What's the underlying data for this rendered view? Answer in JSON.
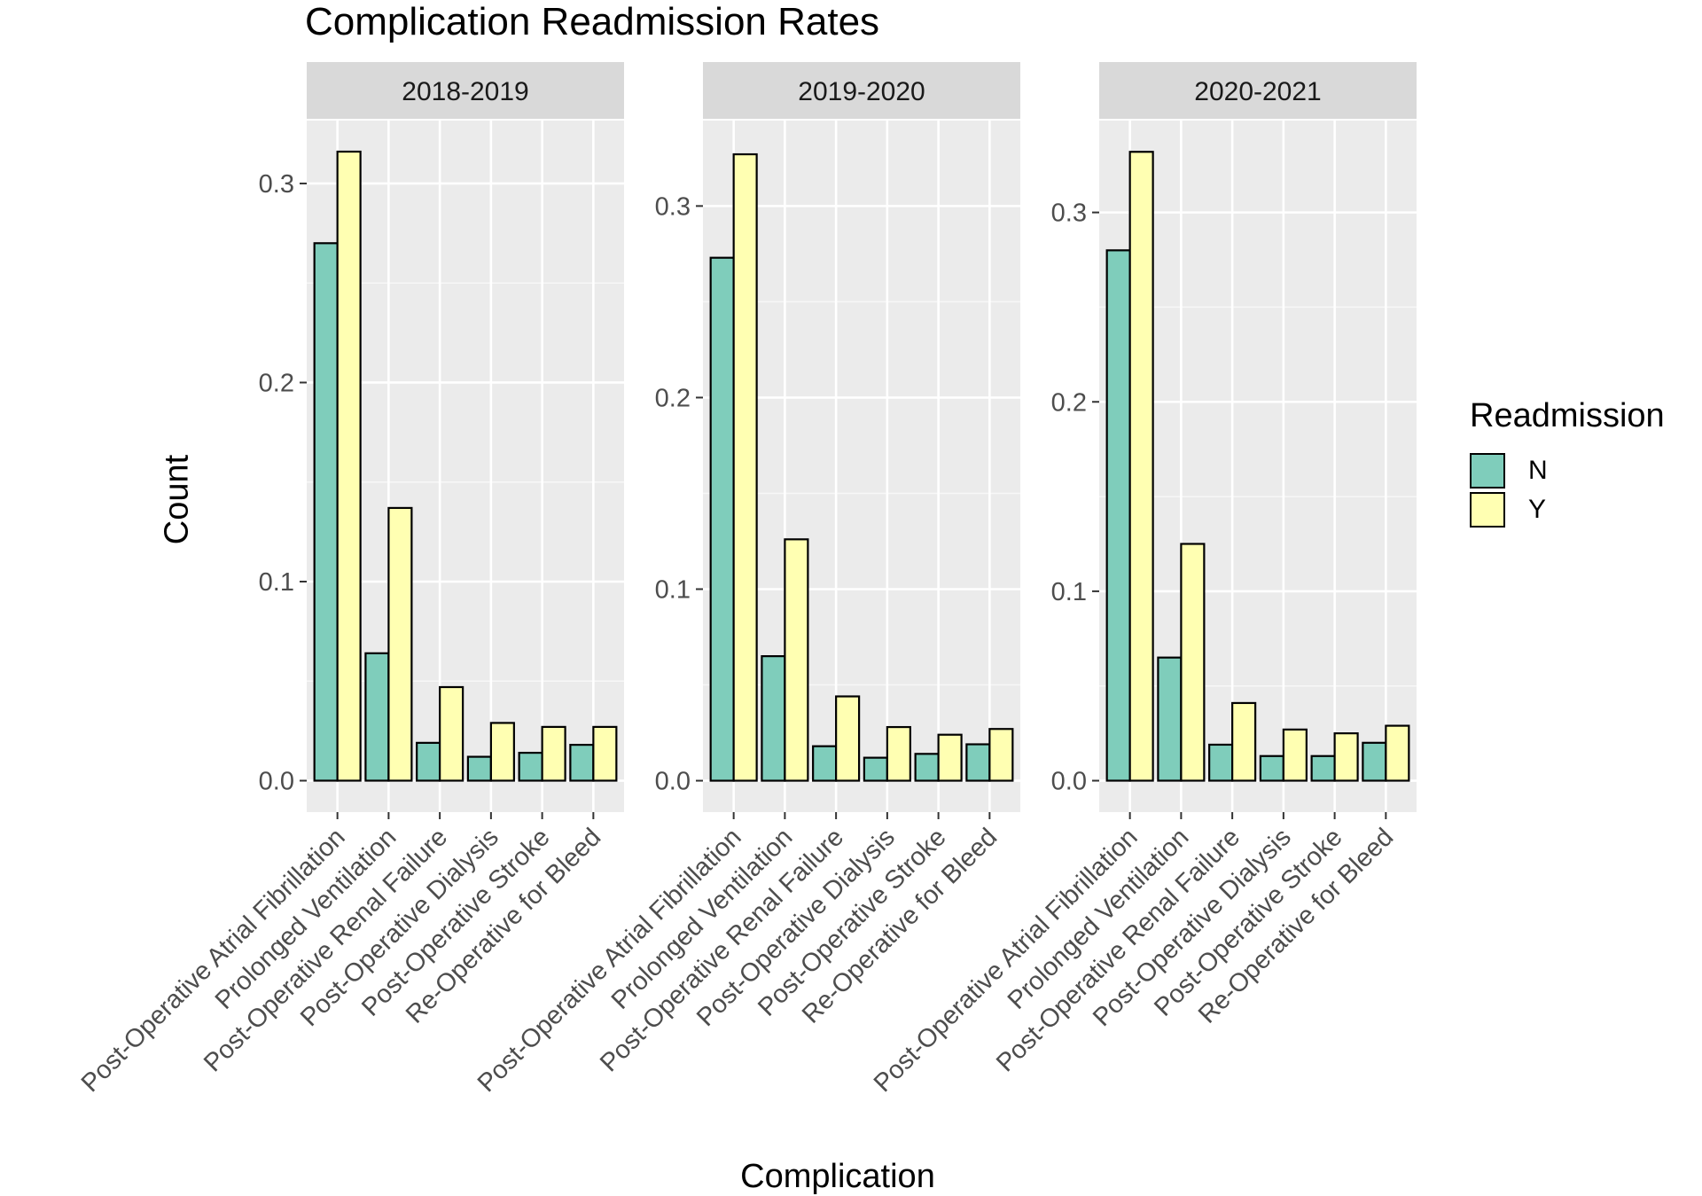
{
  "chart_data": {
    "type": "bar",
    "title": "Complication Readmission Rates",
    "xlabel": "Complication",
    "ylabel": "Count",
    "legend": {
      "title": "Readmission",
      "placement": "right",
      "entries": [
        {
          "name": "N",
          "color": "#7FCDBB"
        },
        {
          "name": "Y",
          "color": "#FFFFB2"
        }
      ]
    },
    "categories": [
      "Post-Operative Atrial Fibrillation",
      "Prolonged Ventilation",
      "Post-Operative Renal Failure",
      "Post-Operative Dialysis",
      "Post-Operative Stroke",
      "Re-Operative for Bleed"
    ],
    "grid": true,
    "panels": [
      {
        "strip": "2018-2019",
        "ylim": [
          -0.0158,
          0.3316
        ],
        "yticks": [
          0.0,
          0.1,
          0.2,
          0.3
        ],
        "ytick_labels": [
          "0.0",
          "0.1",
          "0.2",
          "0.3"
        ],
        "series": [
          {
            "name": "N",
            "values": [
              0.27,
              0.064,
              0.019,
              0.012,
              0.014,
              0.018
            ]
          },
          {
            "name": "Y",
            "values": [
              0.316,
              0.137,
              0.047,
              0.029,
              0.027,
              0.027
            ]
          }
        ]
      },
      {
        "strip": "2019-2020",
        "ylim": [
          -0.0164,
          0.3446
        ],
        "yticks": [
          0.0,
          0.1,
          0.2,
          0.3
        ],
        "ytick_labels": [
          "0.0",
          "0.1",
          "0.2",
          "0.3"
        ],
        "series": [
          {
            "name": "N",
            "values": [
              0.273,
              0.065,
              0.018,
              0.012,
              0.014,
              0.019
            ]
          },
          {
            "name": "Y",
            "values": [
              0.327,
              0.126,
              0.044,
              0.028,
              0.024,
              0.027
            ]
          }
        ]
      },
      {
        "strip": "2020-2021",
        "ylim": [
          -0.0166,
          0.3485
        ],
        "yticks": [
          0.0,
          0.1,
          0.2,
          0.3
        ],
        "ytick_labels": [
          "0.0",
          "0.1",
          "0.2",
          "0.3"
        ],
        "series": [
          {
            "name": "N",
            "values": [
              0.28,
              0.065,
              0.019,
              0.013,
              0.013,
              0.02
            ]
          },
          {
            "name": "Y",
            "values": [
              0.332,
              0.125,
              0.041,
              0.027,
              0.025,
              0.029
            ]
          }
        ]
      }
    ]
  }
}
